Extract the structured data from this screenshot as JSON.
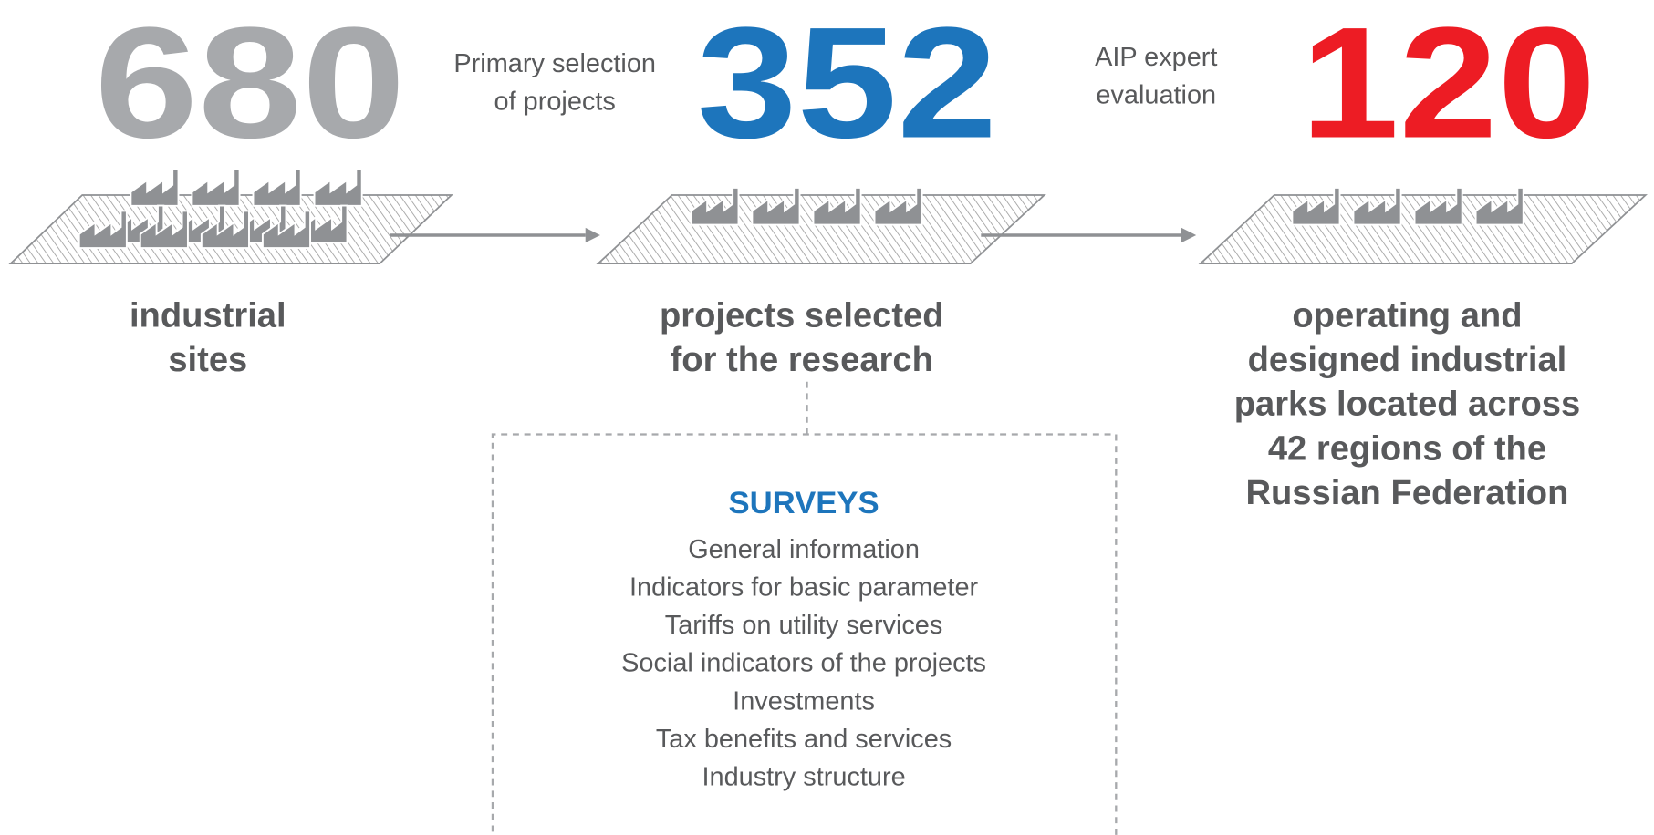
{
  "stages": [
    {
      "number": "680",
      "color": "#a7a9ac",
      "description": [
        "industrial",
        "sites"
      ]
    },
    {
      "number": "352",
      "color": "#1d75bc",
      "description": [
        "projects selected",
        "for the research"
      ]
    },
    {
      "number": "120",
      "color": "#ed1c24",
      "description": [
        "operating and",
        "designed industrial",
        "parks located across",
        "42 regions of the",
        "Russian Federation"
      ]
    }
  ],
  "transitions": [
    {
      "label": [
        "Primary selection",
        "of projects"
      ]
    },
    {
      "label": [
        "AIP expert",
        "evaluation"
      ]
    }
  ],
  "surveys": {
    "title": "SURVEYS",
    "items": [
      "General information",
      "Indicators for basic parameter",
      "Tariffs on utility services",
      "Social indicators of the projects",
      "Investments",
      "Tax benefits and services",
      "Industry structure"
    ]
  }
}
